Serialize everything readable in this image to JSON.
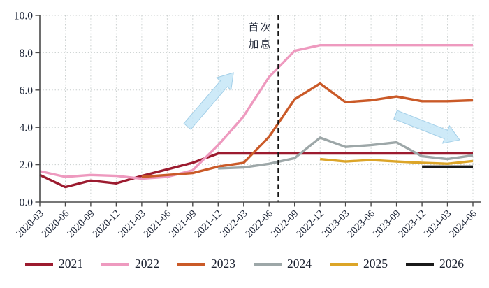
{
  "chart_data": {
    "type": "line",
    "title": "",
    "xlabel": "",
    "ylabel": "",
    "categories": [
      "2020-03",
      "2020-06",
      "2020-09",
      "2020-12",
      "2021-03",
      "2021-06",
      "2021-09",
      "2021-12",
      "2022-03",
      "2022-06",
      "2022-09",
      "2022-12",
      "2023-03",
      "2023-06",
      "2023-09",
      "2023-12",
      "2024-03",
      "2024-06"
    ],
    "series": [
      {
        "name": "2021",
        "color": "#9c1b2f",
        "values": [
          1.45,
          0.8,
          1.15,
          1.0,
          1.4,
          1.75,
          2.1,
          2.6,
          2.6,
          2.6,
          2.6,
          2.6,
          2.6,
          2.6,
          2.6,
          2.6,
          2.6,
          2.6
        ]
      },
      {
        "name": "2022",
        "color": "#ee9abf",
        "values": [
          1.65,
          1.35,
          1.45,
          1.4,
          1.25,
          1.35,
          1.7,
          3.05,
          4.6,
          6.7,
          8.1,
          8.4,
          8.4,
          8.4,
          8.4,
          8.4,
          8.4,
          8.4
        ]
      },
      {
        "name": "2023",
        "color": "#ca5a28",
        "values": [
          null,
          null,
          null,
          null,
          1.35,
          1.45,
          1.55,
          1.9,
          2.1,
          3.5,
          5.5,
          6.35,
          5.35,
          5.45,
          5.65,
          5.4,
          5.4,
          5.45
        ]
      },
      {
        "name": "2024",
        "color": "#9da7a8",
        "values": [
          null,
          null,
          null,
          null,
          null,
          null,
          null,
          1.8,
          1.85,
          2.05,
          2.35,
          3.45,
          2.95,
          3.05,
          3.2,
          2.45,
          2.3,
          2.5
        ]
      },
      {
        "name": "2025",
        "color": "#dca528",
        "values": [
          null,
          null,
          null,
          null,
          null,
          null,
          null,
          null,
          null,
          null,
          null,
          2.3,
          2.17,
          2.25,
          2.17,
          2.1,
          2.05,
          2.2
        ]
      },
      {
        "name": "2026",
        "color": "#191919",
        "values": [
          null,
          null,
          null,
          null,
          null,
          null,
          null,
          null,
          null,
          null,
          null,
          null,
          null,
          null,
          null,
          1.9,
          1.9,
          1.9
        ]
      }
    ],
    "ylim": [
      0,
      10
    ],
    "yticks": [
      0,
      2,
      4,
      6,
      8,
      10
    ],
    "ytick_labels": [
      "0.0",
      "2.0",
      "4.0",
      "6.0",
      "8.0",
      "10.0"
    ],
    "grid": "dotted, horizontal and vertical",
    "legend_position": "bottom",
    "annotation": {
      "label_lines": [
        "首次",
        "加息"
      ],
      "label_text": "首次加息",
      "line_style": "vertical black dashed",
      "line_between": [
        "2022-06",
        "2022-09"
      ],
      "line_x_index": 9.36
    },
    "trend_arrows": [
      {
        "direction": "up-right",
        "x0": 5.79,
        "y0": 4.05,
        "x1": 7.6,
        "y1": 6.93,
        "color": "#c6e6f7"
      },
      {
        "direction": "down-right",
        "x0": 13.96,
        "y0": 4.68,
        "x1": 16.48,
        "y1": 3.33,
        "color": "#c6e6f7"
      }
    ],
    "colors": {
      "grid": "#c8cecd",
      "axis": "#4a4a4a",
      "tick_text": "#1e2638",
      "event_line": "#141414",
      "arrow_fill": "#c6e6f7"
    }
  }
}
